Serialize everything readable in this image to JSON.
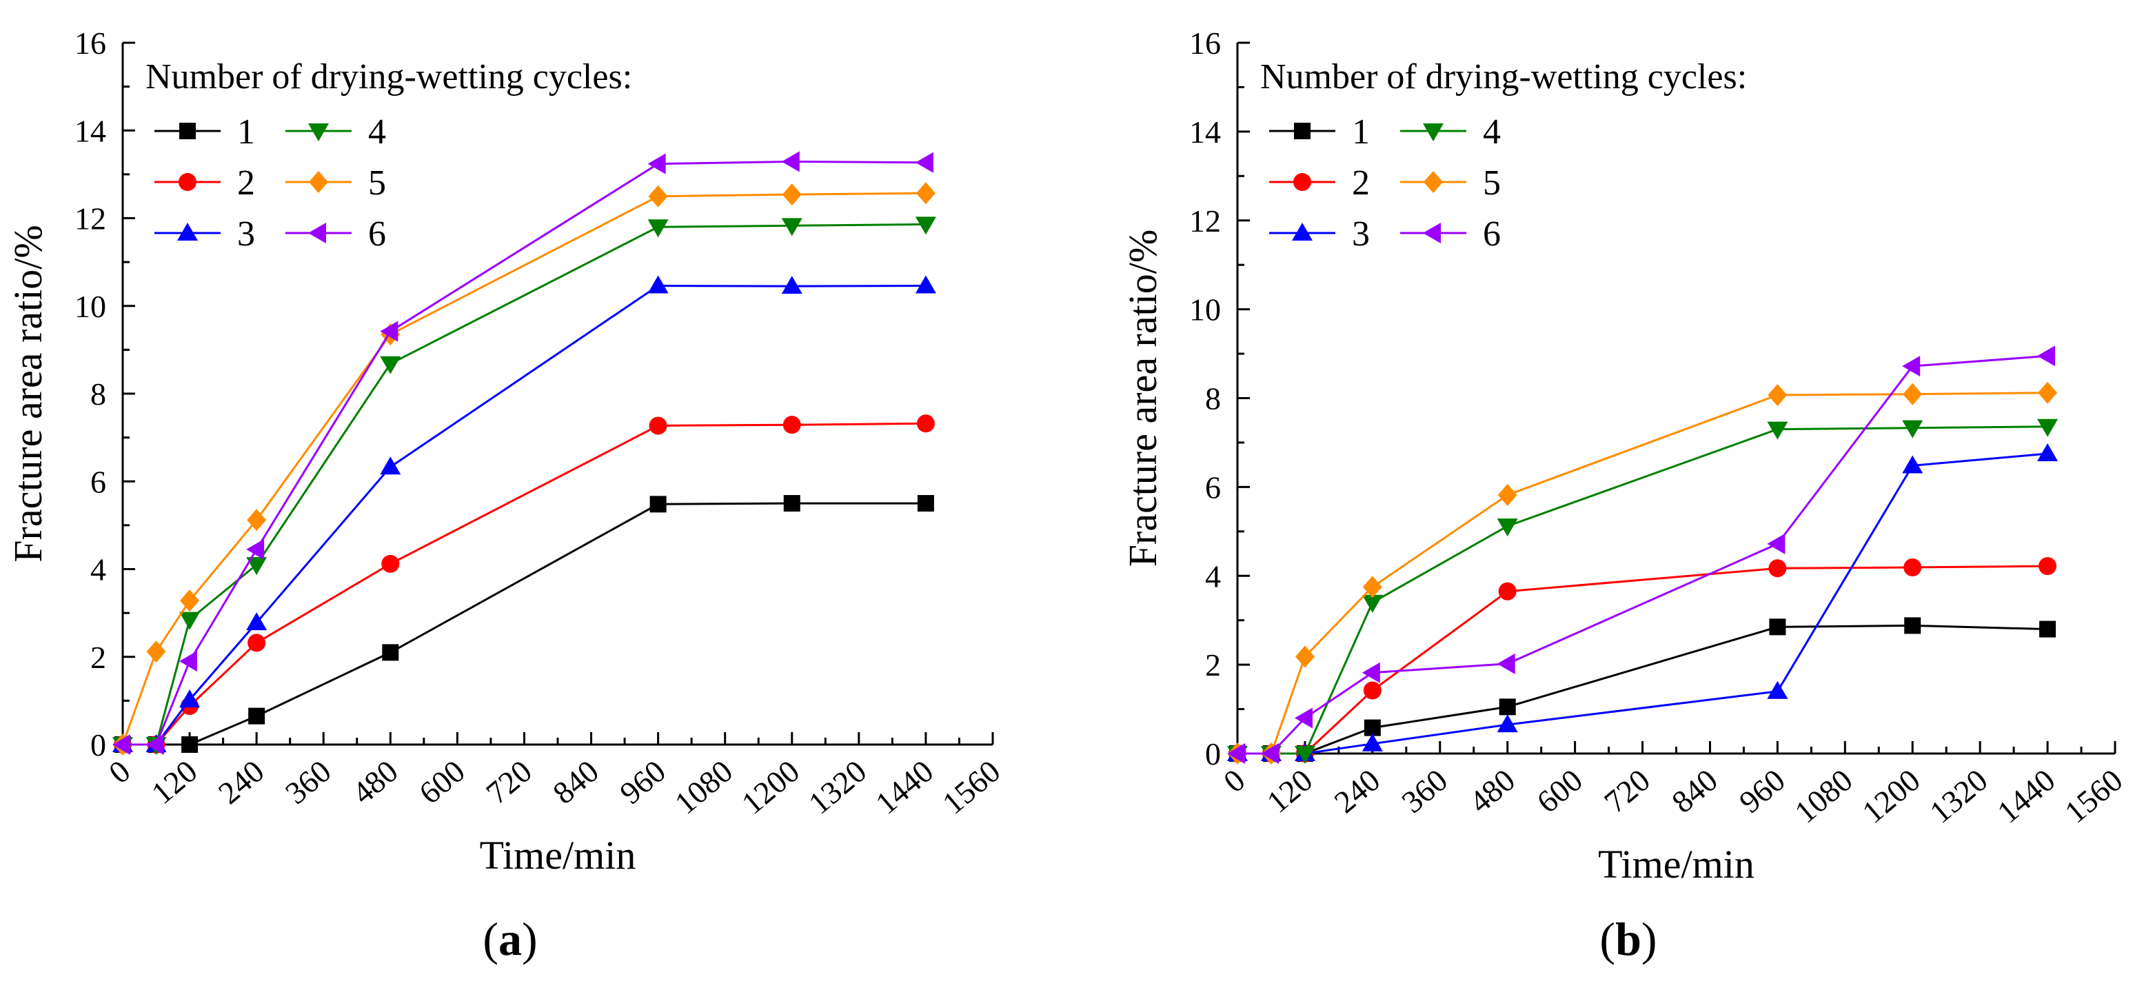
{
  "series_style": [
    {
      "name": "1",
      "color": "#000000",
      "marker": "square"
    },
    {
      "name": "2",
      "color": "#ff0000",
      "marker": "circle"
    },
    {
      "name": "3",
      "color": "#0000ff",
      "marker": "triangle-up"
    },
    {
      "name": "4",
      "color": "#008000",
      "marker": "triangle-down"
    },
    {
      "name": "5",
      "color": "#ff8c00",
      "marker": "diamond"
    },
    {
      "name": "6",
      "color": "#9b00ff",
      "marker": "triangle-left"
    }
  ],
  "chart_data": [
    {
      "type": "line",
      "panel_label": "(a)",
      "panel_letter": "a",
      "title": "",
      "xlabel": "Time/min",
      "ylabel": "Fracture area ratio/%",
      "xlim": [
        0,
        1560
      ],
      "ylim": [
        0,
        16
      ],
      "xticks": [
        "0",
        "120",
        "240",
        "360",
        "480",
        "600",
        "720",
        "840",
        "960",
        "1080",
        "1200",
        "1320",
        "1440",
        "1560"
      ],
      "yticks": [
        "0",
        "2",
        "4",
        "6",
        "8",
        "10",
        "12",
        "14",
        "16"
      ],
      "legend_title": "Number of drying-wetting cycles:",
      "legend_position": "top-left",
      "x": [
        0,
        60,
        120,
        240,
        480,
        960,
        1200,
        1440
      ],
      "series": [
        {
          "name": "1",
          "values": [
            0,
            0,
            0,
            0.65,
            2.1,
            5.48,
            5.5,
            5.5
          ]
        },
        {
          "name": "2",
          "values": [
            0,
            0,
            0.88,
            2.32,
            4.12,
            7.27,
            7.29,
            7.32
          ]
        },
        {
          "name": "3",
          "values": [
            0,
            0,
            1.02,
            2.78,
            6.33,
            10.46,
            10.45,
            10.46
          ]
        },
        {
          "name": "4",
          "values": [
            0,
            0,
            2.85,
            4.1,
            8.68,
            11.8,
            11.83,
            11.86
          ]
        },
        {
          "name": "5",
          "values": [
            0,
            2.12,
            3.28,
            5.12,
            9.35,
            12.5,
            12.54,
            12.57
          ]
        },
        {
          "name": "6",
          "values": [
            0,
            0,
            1.9,
            4.45,
            9.42,
            13.24,
            13.29,
            13.27
          ]
        }
      ]
    },
    {
      "type": "line",
      "panel_label": "(b)",
      "panel_letter": "b",
      "title": "",
      "xlabel": "Time/min",
      "ylabel": "Fracture area ratio/%",
      "xlim": [
        0,
        1560
      ],
      "ylim": [
        0,
        16
      ],
      "xticks": [
        "0",
        "120",
        "240",
        "360",
        "480",
        "600",
        "720",
        "840",
        "960",
        "1080",
        "1200",
        "1320",
        "1440",
        "1560"
      ],
      "yticks": [
        "0",
        "2",
        "4",
        "6",
        "8",
        "10",
        "12",
        "14",
        "16"
      ],
      "legend_title": "Number of drying-wetting cycles:",
      "legend_position": "top-left",
      "x": [
        0,
        60,
        120,
        240,
        480,
        960,
        1200,
        1440
      ],
      "series": [
        {
          "name": "1",
          "values": [
            0,
            0,
            0,
            0.58,
            1.05,
            2.85,
            2.88,
            2.8
          ]
        },
        {
          "name": "2",
          "values": [
            0,
            0,
            0,
            1.42,
            3.65,
            4.17,
            4.19,
            4.22
          ]
        },
        {
          "name": "3",
          "values": [
            0,
            0,
            0,
            0.22,
            0.65,
            1.4,
            6.48,
            6.75
          ]
        },
        {
          "name": "4",
          "values": [
            0,
            0,
            0,
            3.4,
            5.12,
            7.3,
            7.33,
            7.36
          ]
        },
        {
          "name": "5",
          "values": [
            0,
            0,
            2.18,
            3.75,
            5.82,
            8.07,
            8.09,
            8.12
          ]
        },
        {
          "name": "6",
          "values": [
            0,
            0,
            0.8,
            1.82,
            2.02,
            4.72,
            8.72,
            8.95
          ]
        }
      ]
    }
  ]
}
